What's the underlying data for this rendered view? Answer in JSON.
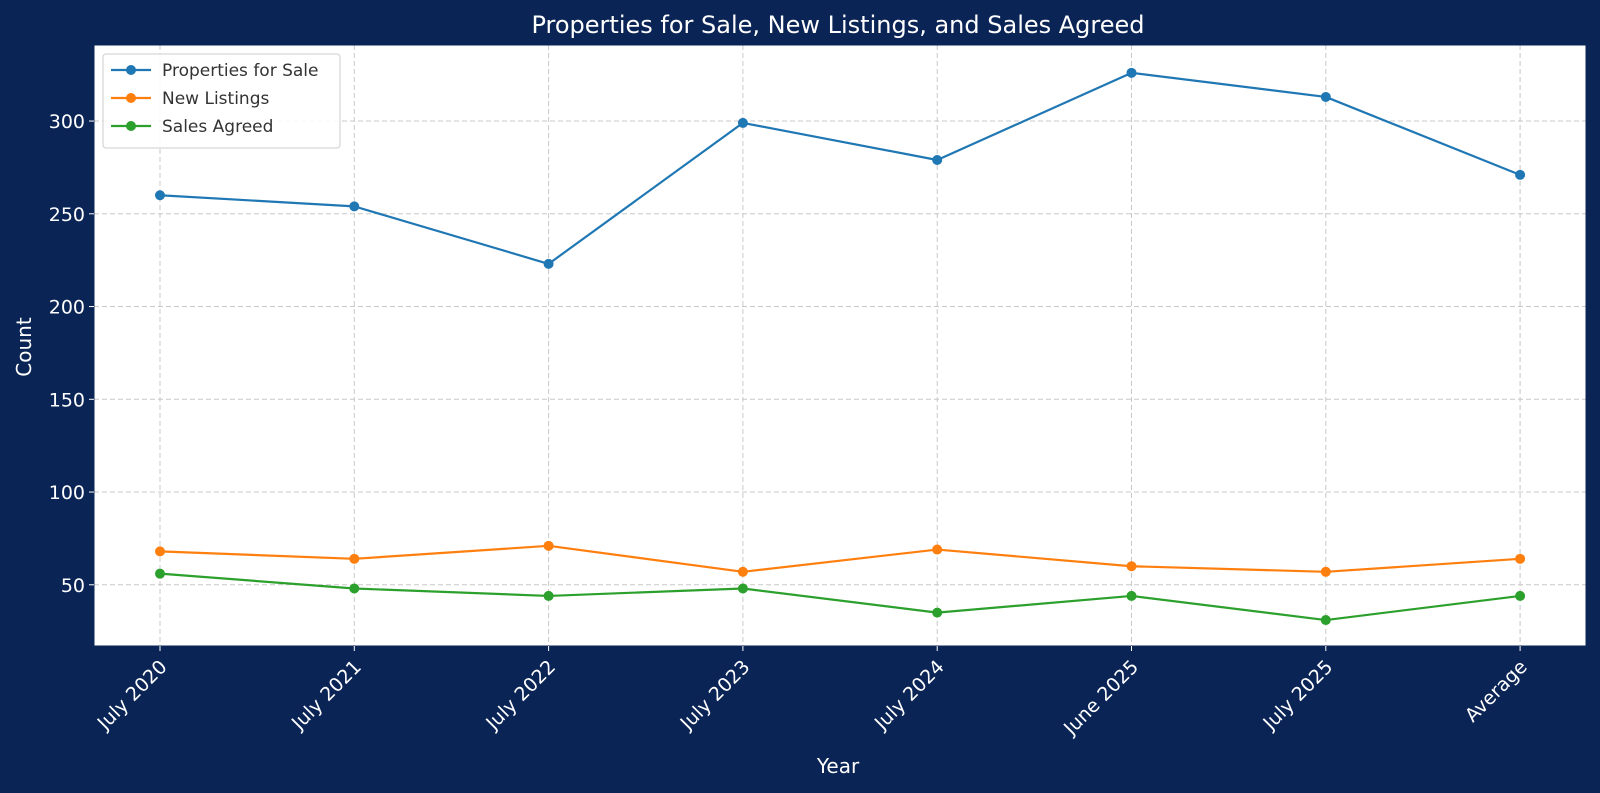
{
  "chart_data": {
    "type": "line",
    "title": "Properties for Sale, New Listings, and Sales Agreed",
    "xlabel": "Year",
    "ylabel": "Count",
    "categories": [
      "July 2020",
      "July 2021",
      "July 2022",
      "July 2023",
      "July 2024",
      "June 2025",
      "July 2025",
      "Average"
    ],
    "ylim": [
      17,
      341
    ],
    "yticks": [
      50,
      100,
      150,
      200,
      250,
      300
    ],
    "grid": true,
    "legend_position": "top-left",
    "series": [
      {
        "name": "Properties for Sale",
        "color": "#1f77b4",
        "values": [
          260,
          254,
          223,
          299,
          279,
          326,
          313,
          271
        ]
      },
      {
        "name": "New Listings",
        "color": "#ff7f0e",
        "values": [
          68,
          64,
          71,
          57,
          69,
          60,
          57,
          64
        ]
      },
      {
        "name": "Sales Agreed",
        "color": "#2ca02c",
        "values": [
          56,
          48,
          44,
          48,
          35,
          44,
          31,
          44
        ]
      }
    ]
  }
}
